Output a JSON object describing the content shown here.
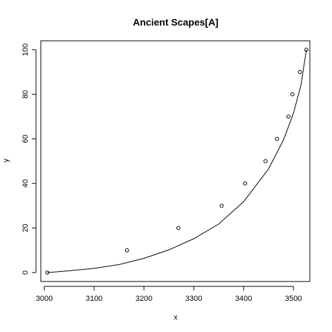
{
  "chart_data": {
    "type": "scatter",
    "title": "Ancient Scapes[A]",
    "xlabel": "x",
    "ylabel": "y",
    "xlim": [
      2993,
      3533
    ],
    "ylim": [
      -4,
      104
    ],
    "xticks": [
      3000,
      3100,
      3200,
      3300,
      3400,
      3500
    ],
    "yticks": [
      0,
      20,
      40,
      60,
      80,
      100
    ],
    "grid": false,
    "legend": "none",
    "points": [
      {
        "x": 3006,
        "y": 0
      },
      {
        "x": 3166,
        "y": 10
      },
      {
        "x": 3269,
        "y": 20
      },
      {
        "x": 3356,
        "y": 30
      },
      {
        "x": 3403,
        "y": 40
      },
      {
        "x": 3444,
        "y": 50
      },
      {
        "x": 3467,
        "y": 60
      },
      {
        "x": 3490,
        "y": 70
      },
      {
        "x": 3498,
        "y": 80
      },
      {
        "x": 3513,
        "y": 90
      },
      {
        "x": 3526,
        "y": 100
      }
    ],
    "curve": [
      {
        "x": 3006,
        "y": 0
      },
      {
        "x": 3050,
        "y": 0.8
      },
      {
        "x": 3100,
        "y": 1.9
      },
      {
        "x": 3150,
        "y": 3.6
      },
      {
        "x": 3200,
        "y": 6.4
      },
      {
        "x": 3250,
        "y": 10.2
      },
      {
        "x": 3300,
        "y": 15.2
      },
      {
        "x": 3350,
        "y": 21.8
      },
      {
        "x": 3400,
        "y": 31.8
      },
      {
        "x": 3450,
        "y": 46.5
      },
      {
        "x": 3480,
        "y": 59.5
      },
      {
        "x": 3500,
        "y": 71.5
      },
      {
        "x": 3515,
        "y": 84
      },
      {
        "x": 3526,
        "y": 100
      }
    ],
    "colors": {
      "points": "#000000",
      "curve": "#000000",
      "axes": "#000000"
    }
  }
}
